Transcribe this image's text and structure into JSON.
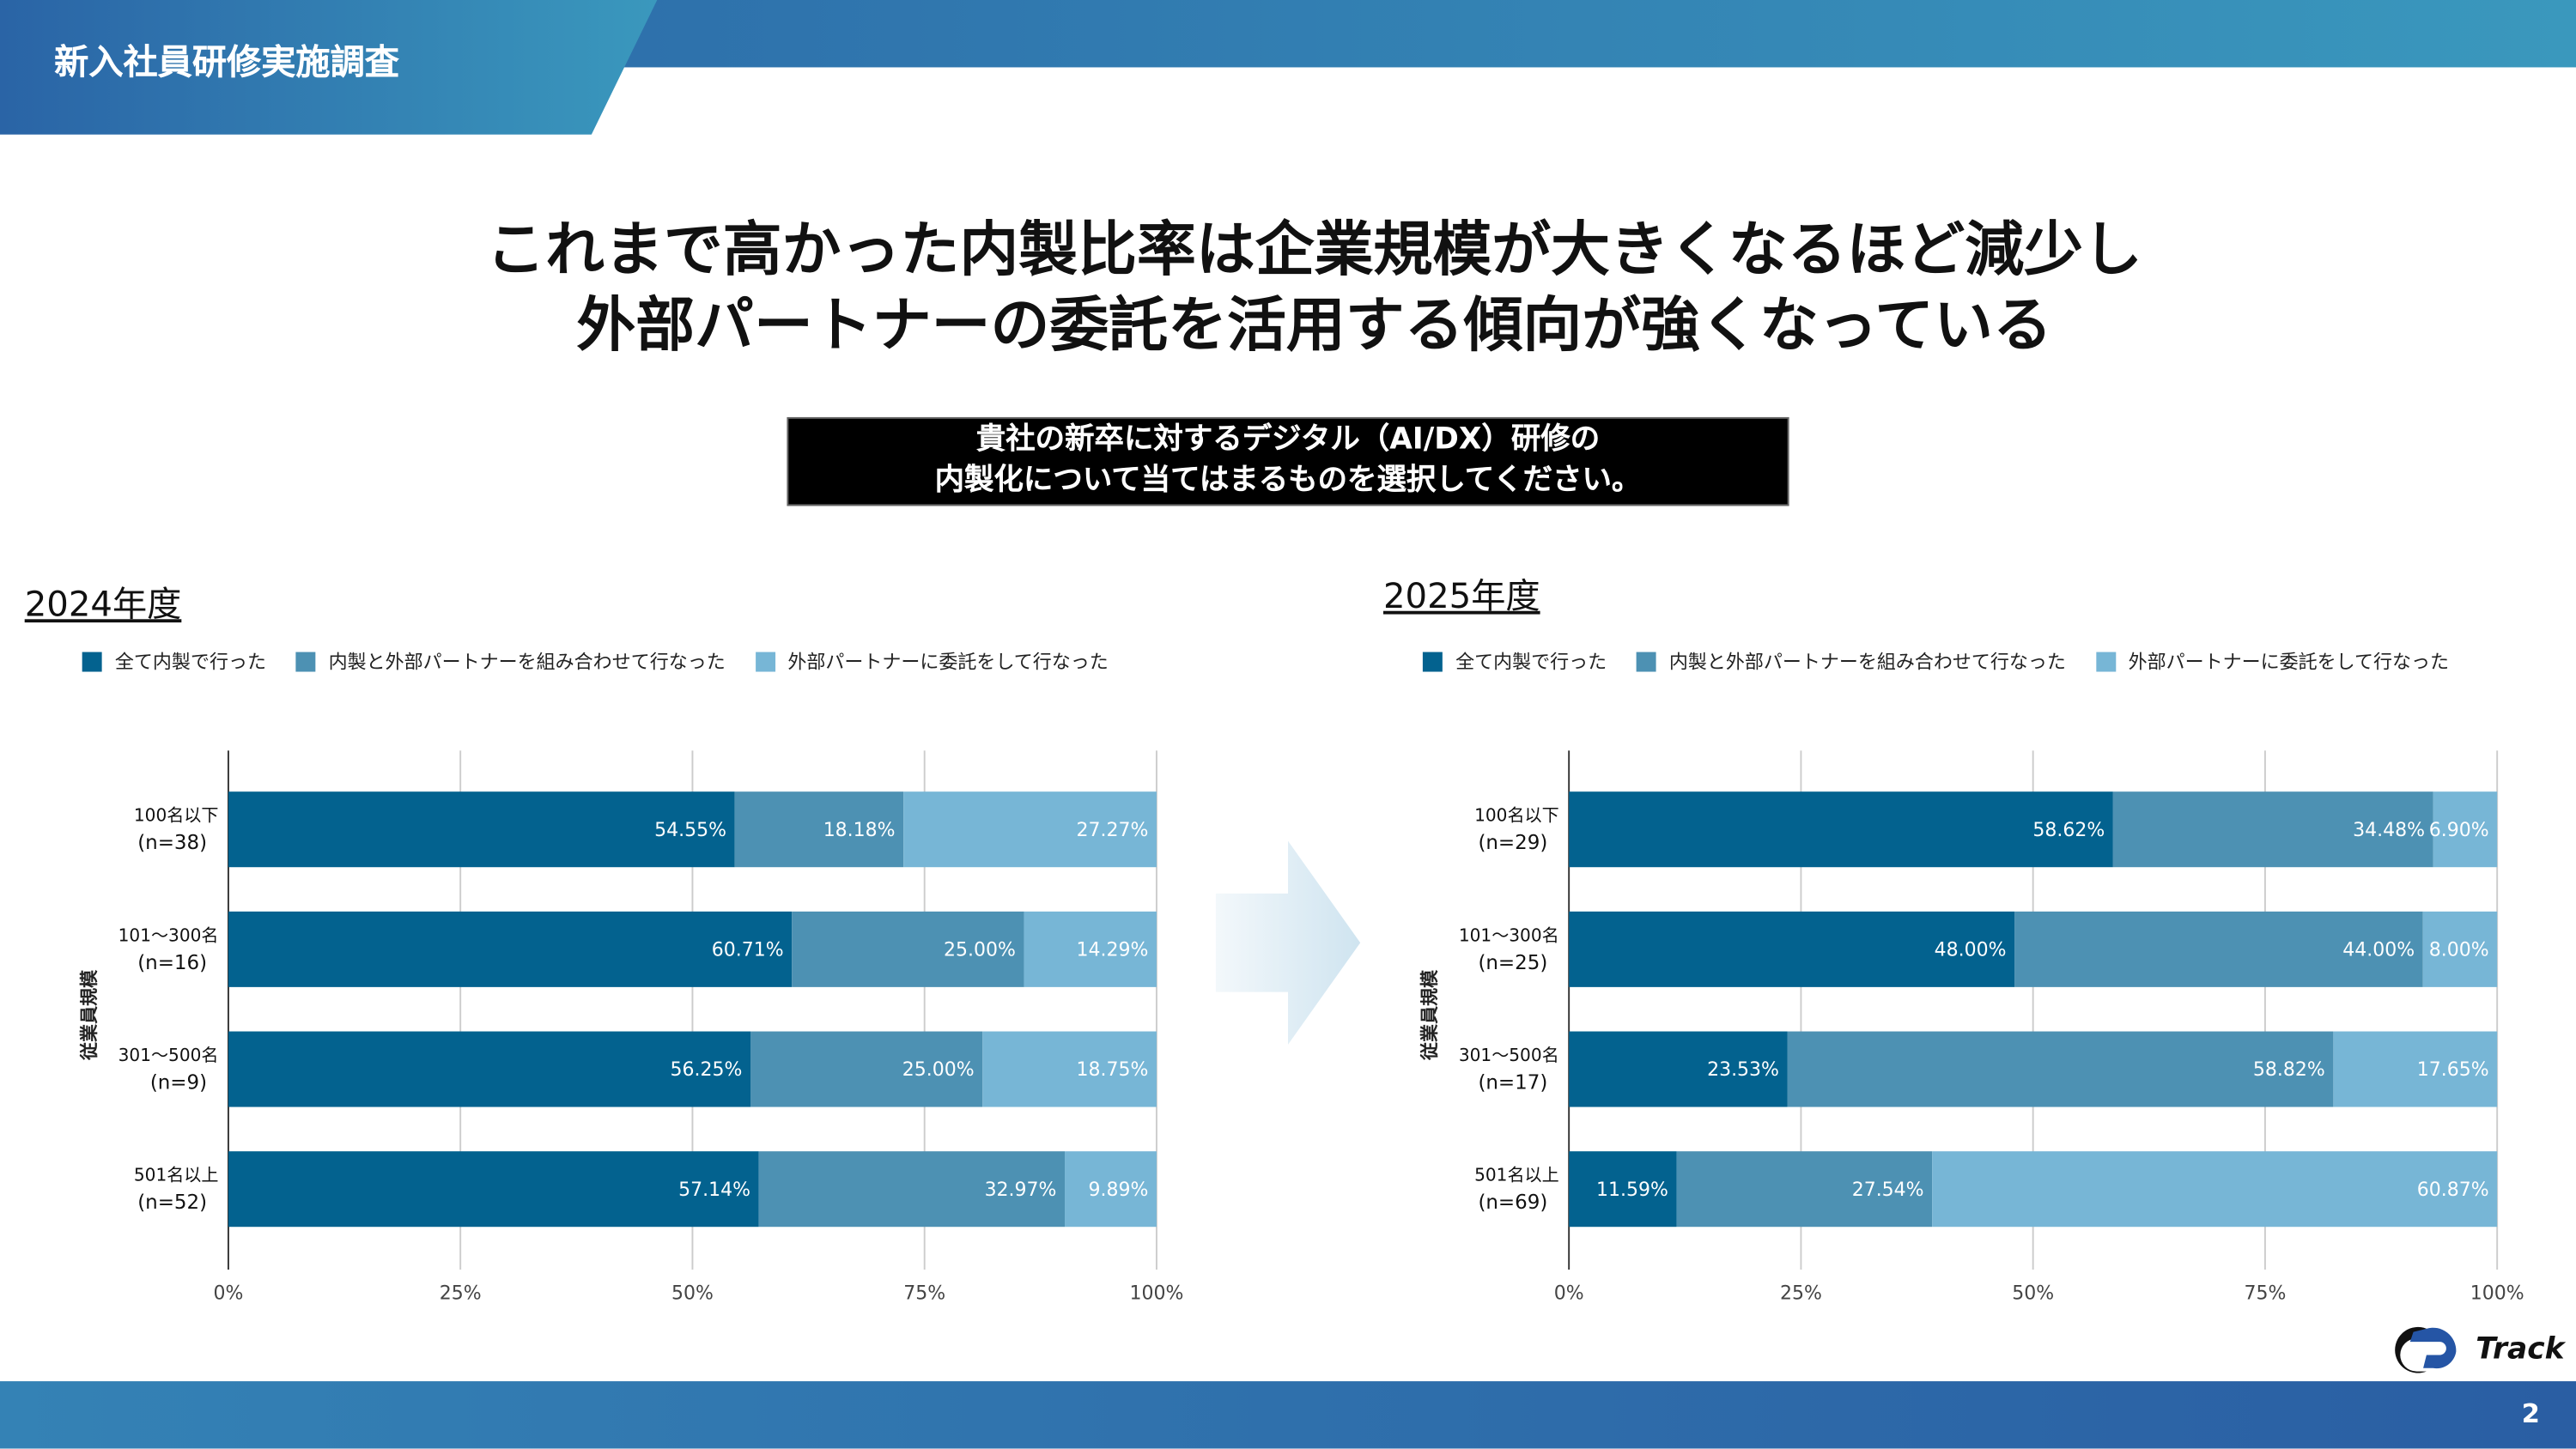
{
  "header": {
    "section_title": "新入社員研修実施調査"
  },
  "headline": [
    "これまで高かった内製比率は企業規模が大きくなるほど減少し",
    "外部パートナーの委託を活用する傾向が強くなっている"
  ],
  "question": [
    "貴社の新卒に対するデジタル（AI/DX）研修の",
    "内製化について当てはまるものを選択してください。"
  ],
  "colors": {
    "in_house": "#03628f",
    "mixed": "#4d91b3",
    "outsourced": "#77b6d6"
  },
  "chart_data": [
    {
      "type": "bar",
      "orientation": "horizontal",
      "stacked": true,
      "title": "2024年度",
      "ylabel": "従業員規模",
      "xlim": [
        0,
        100
      ],
      "xticks": [
        "0%",
        "25%",
        "50%",
        "75%",
        "100%"
      ],
      "legend": [
        "全て内製で行った",
        "内製と外部パートナーを組み合わせて行なった",
        "外部パートナーに委託をして行なった"
      ],
      "categories": [
        [
          "100名以下",
          "(n=38)"
        ],
        [
          "101～300名",
          "(n=16)"
        ],
        [
          "301～500名",
          "(n=9)"
        ],
        [
          "501名以上",
          "(n=52)"
        ]
      ],
      "series": [
        {
          "name": "全て内製で行った",
          "values": [
            54.55,
            60.71,
            56.25,
            57.14
          ]
        },
        {
          "name": "内製と外部パートナーを組み合わせて行なった",
          "values": [
            18.18,
            25.0,
            25.0,
            32.97
          ]
        },
        {
          "name": "外部パートナーに委託をして行なった",
          "values": [
            27.27,
            14.29,
            18.75,
            9.89
          ]
        }
      ]
    },
    {
      "type": "bar",
      "orientation": "horizontal",
      "stacked": true,
      "title": "2025年度",
      "ylabel": "従業員規模",
      "xlim": [
        0,
        100
      ],
      "xticks": [
        "0%",
        "25%",
        "50%",
        "75%",
        "100%"
      ],
      "legend": [
        "全て内製で行った",
        "内製と外部パートナーを組み合わせて行なった",
        "外部パートナーに委託をして行なった"
      ],
      "categories": [
        [
          "100名以下",
          "(n=29)"
        ],
        [
          "101～300名",
          "(n=25)"
        ],
        [
          "301～500名",
          "(n=17)"
        ],
        [
          "501名以上",
          "(n=69)"
        ]
      ],
      "series": [
        {
          "name": "全て内製で行った",
          "values": [
            58.62,
            48.0,
            23.53,
            11.59
          ]
        },
        {
          "name": "内製と外部パートナーを組み合わせて行なった",
          "values": [
            34.48,
            44.0,
            58.82,
            27.54
          ]
        },
        {
          "name": "外部パートナーに委託をして行なった",
          "values": [
            6.9,
            8.0,
            17.65,
            60.87
          ]
        }
      ]
    }
  ],
  "logo": {
    "text": "Track"
  },
  "footer": {
    "page": "2"
  }
}
